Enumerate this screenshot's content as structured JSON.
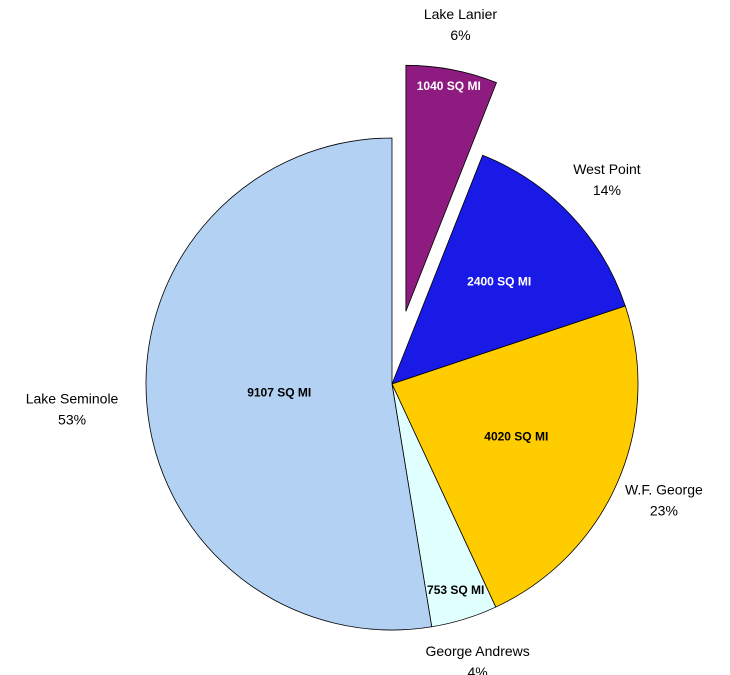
{
  "chart_data": {
    "type": "pie",
    "categories": [
      "Lake Lanier",
      "West Point",
      "W.F. George",
      "George Andrews",
      "Lake Seminole"
    ],
    "values": [
      1040,
      2400,
      4020,
      753,
      9107
    ],
    "value_labels": [
      "1040 SQ MI",
      "2400 SQ MI",
      "4020 SQ MI",
      "753 SQ MI",
      "9107 SQ MI"
    ],
    "percent_labels": [
      "6%",
      "14%",
      "23%",
      "4%",
      "53%"
    ],
    "colors": [
      "#8e1b80",
      "#1a1ae6",
      "#ffcc00",
      "#e0ffff",
      "#b3d1f2"
    ],
    "label_colors": [
      "#ffffff",
      "#ffffff",
      "#000000",
      "#000000",
      "#000000"
    ],
    "exploded": [
      true,
      false,
      false,
      false,
      false
    ]
  }
}
